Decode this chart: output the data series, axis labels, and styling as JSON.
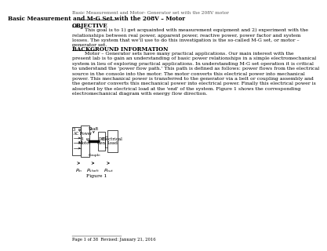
{
  "header_text": "Basic Measurement and Motor- Generator set with the 208V motor",
  "title": "Basic Measurement and M-G Set with the 208V – Motor",
  "section1_heading": "OBJECTIVE",
  "section1_body": "        This goal is to 1) get acquainted with measurement equipment and 2) experiment with the\nrelationships between real power, apparent power, reactive power, power factor and system\nlosses. The system that we'll use to do this investigation is the so-called M-G set, or motor –\ngenerator set.",
  "section2_heading": "BACKGROUND INFORMATION",
  "section2_body": "        Motor – Generator sets have many practical applications. Our main interest with the\npresent lab is to gain an understanding of basic power relationships in a simple electromechanical\nsystem in lieu of exploring practical applications. In understanding M-G set operation it is critical\nto understand the 'power flow path.' This path is defined as follows: power flows from the electrical\nsource in the console into the motor. The motor converts this electrical power into mechanical\npower. This mechanical power is transferred to the generator via a belt or coupling assembly and\nthe generator converts this mechanical power into electrical power. Finally this electrical power is\nabsorbed by the electrical load at the 'end' of the system. Figure 1 shows the corresponding\nelectromechanical diagram with energy flow direction.",
  "figure_caption": "Figure 1",
  "footer_text": "Page 1 of 38  Revised: January 21, 2016",
  "bg_color": "#ffffff",
  "text_color": "#000000",
  "font_size_header": 4.2,
  "font_size_title": 5.2,
  "font_size_body": 4.5,
  "font_size_heading": 5.0,
  "font_size_footer": 3.8
}
